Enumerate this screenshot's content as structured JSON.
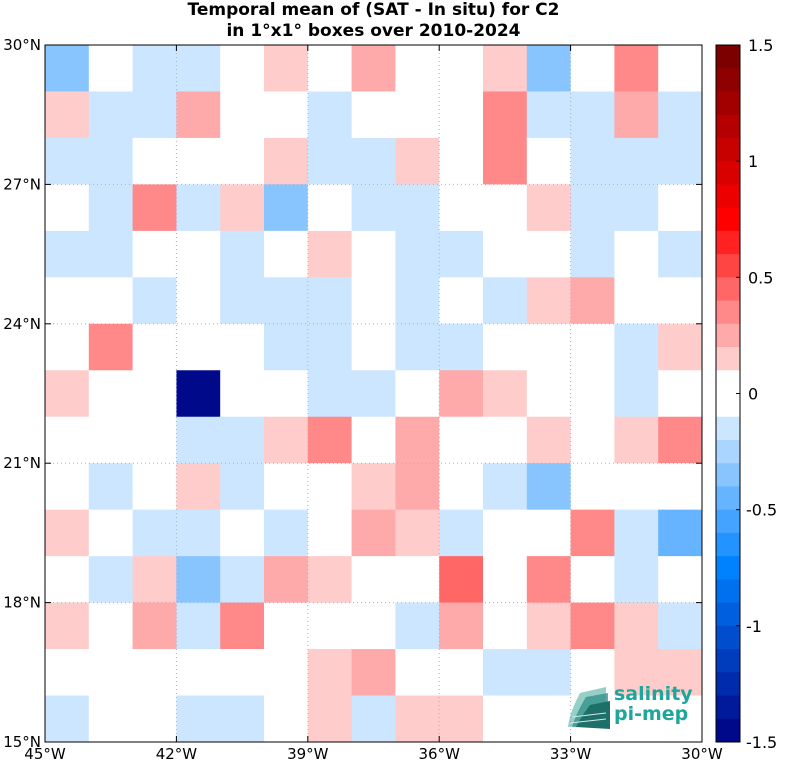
{
  "chart_data": {
    "type": "heatmap",
    "title": "Temporal mean of (SAT - In situ) for C2",
    "subtitle": "in 1°x1° boxes over 2010-2024",
    "x_ticks": [
      "45°W",
      "42°W",
      "39°W",
      "36°W",
      "33°W",
      "30°W"
    ],
    "y_ticks": [
      "30°N",
      "27°N",
      "24°N",
      "21°N",
      "18°N",
      "15°N"
    ],
    "xlim": [
      -45,
      -30
    ],
    "ylim": [
      15,
      30
    ],
    "grid": true,
    "colorbar": {
      "range": [
        -1.5,
        1.5
      ],
      "ticks": [
        "1.5",
        "1",
        "0.5",
        "0",
        "-0.5",
        "-1",
        "-1.5"
      ],
      "tick_values": [
        1.5,
        1,
        0.5,
        0,
        -0.5,
        -1,
        -1.5
      ]
    },
    "rows_note": "values[0] is the 29-30°N row, columns run from 45°W eastward",
    "values": [
      [
        -0.35,
        0,
        -0.1,
        -0.2,
        0,
        0.1,
        0,
        0.2,
        0,
        0,
        0.1,
        -0.35,
        0,
        0.35,
        0
      ],
      [
        0.1,
        -0.1,
        -0.1,
        0.25,
        0,
        0,
        -0.2,
        0,
        0,
        0,
        0.35,
        -0.1,
        -0.1,
        0.25,
        -0.1
      ],
      [
        -0.1,
        -0.1,
        0,
        0,
        0,
        0.1,
        -0.1,
        -0.1,
        0.1,
        0,
        0.35,
        0,
        -0.1,
        -0.1,
        -0.1
      ],
      [
        0,
        -0.1,
        0.35,
        -0.2,
        0.1,
        -0.35,
        0,
        -0.2,
        -0.2,
        0,
        0,
        0.1,
        -0.2,
        -0.1,
        0
      ],
      [
        -0.2,
        -0.1,
        0,
        0,
        -0.1,
        0,
        0.1,
        0,
        -0.1,
        -0.1,
        0,
        0,
        -0.1,
        0,
        -0.2
      ],
      [
        0,
        0,
        -0.1,
        0,
        -0.1,
        -0.2,
        -0.2,
        0,
        -0.1,
        0,
        -0.1,
        0.1,
        0.25,
        0,
        0
      ],
      [
        0,
        0.35,
        0,
        0,
        0,
        -0.2,
        -0.1,
        0,
        -0.1,
        -0.1,
        0,
        0,
        0,
        -0.1,
        0.1
      ],
      [
        0.1,
        0,
        0,
        -1.5,
        0,
        0,
        -0.1,
        -0.1,
        0,
        0.25,
        0.1,
        0,
        0,
        -0.1,
        0
      ],
      [
        0,
        0,
        0,
        -0.1,
        -0.1,
        0.1,
        0.35,
        0,
        0.25,
        0,
        0,
        0.1,
        0,
        0.1,
        0.35
      ],
      [
        0,
        -0.1,
        0,
        0.1,
        -0.1,
        0,
        0,
        0.1,
        0.25,
        0,
        -0.1,
        -0.35,
        0,
        0,
        0
      ],
      [
        0.1,
        0,
        -0.2,
        -0.1,
        0,
        -0.2,
        0,
        0.25,
        0.1,
        -0.1,
        0,
        0,
        0.35,
        -0.1,
        -0.45
      ],
      [
        0,
        -0.2,
        0.1,
        -0.35,
        -0.1,
        0.25,
        0.1,
        0,
        0,
        0.45,
        0,
        0.35,
        0,
        -0.1,
        0
      ],
      [
        0.1,
        0,
        0.25,
        -0.2,
        0.35,
        0,
        0,
        0,
        -0.1,
        0.25,
        0,
        0.1,
        0.35,
        0.1,
        -0.1
      ],
      [
        0,
        0,
        0,
        0,
        0,
        0,
        0.1,
        0.25,
        0,
        0,
        -0.1,
        -0.2,
        0,
        0.1,
        0.1
      ],
      [
        -0.1,
        0,
        0,
        -0.1,
        -0.1,
        0,
        0.1,
        -0.1,
        0.1,
        0.1,
        0,
        0,
        0,
        0,
        0
      ]
    ]
  },
  "logo": {
    "line1": "salinity",
    "line2": "pi-mep"
  },
  "colors": {
    "cell_stroke": "none",
    "axis": "#000000",
    "grid": "#b0b0b0"
  }
}
